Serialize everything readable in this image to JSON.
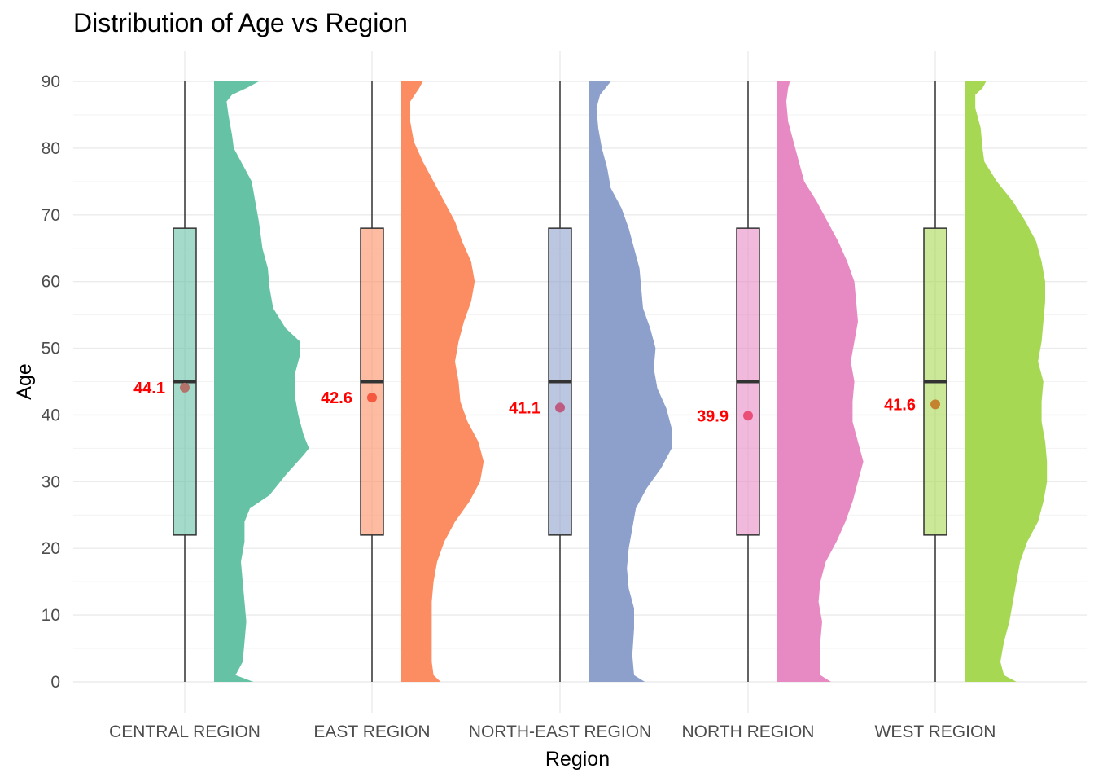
{
  "chart_data": {
    "type": "raincloud",
    "title": "Distribution of Age vs Region",
    "xlabel": "Region",
    "ylabel": "Age",
    "ylim": [
      0,
      90
    ],
    "yticks": [
      0,
      10,
      20,
      30,
      40,
      50,
      60,
      70,
      80,
      90
    ],
    "grid": true,
    "legend": "none",
    "categories": [
      "CENTRAL REGION",
      "EAST REGION",
      "NORTH-EAST REGION",
      "NORTH REGION",
      "WEST REGION"
    ],
    "colors": [
      "#66c2a5",
      "#fc8d62",
      "#8da0cb",
      "#e78ac3",
      "#a6d854"
    ],
    "series": [
      {
        "category": "CENTRAL REGION",
        "box": {
          "min": 0,
          "q1": 22,
          "median": 45,
          "q3": 68,
          "max": 90
        },
        "mean": 44.1,
        "mean_label": "44.1",
        "mean_color": "#b3726a",
        "density": [
          [
            0,
            0.22
          ],
          [
            1,
            0.12
          ],
          [
            3,
            0.16
          ],
          [
            6,
            0.17
          ],
          [
            9,
            0.18
          ],
          [
            12,
            0.17
          ],
          [
            15,
            0.16
          ],
          [
            18,
            0.15
          ],
          [
            21,
            0.17
          ],
          [
            24,
            0.17
          ],
          [
            26,
            0.2
          ],
          [
            28,
            0.31
          ],
          [
            31,
            0.4
          ],
          [
            34,
            0.5
          ],
          [
            35,
            0.53
          ],
          [
            37,
            0.5
          ],
          [
            40,
            0.47
          ],
          [
            43,
            0.45
          ],
          [
            46,
            0.45
          ],
          [
            49,
            0.48
          ],
          [
            51,
            0.48
          ],
          [
            53,
            0.4
          ],
          [
            56,
            0.33
          ],
          [
            59,
            0.31
          ],
          [
            62,
            0.3
          ],
          [
            65,
            0.27
          ],
          [
            69,
            0.25
          ],
          [
            72,
            0.23
          ],
          [
            75,
            0.21
          ],
          [
            78,
            0.15
          ],
          [
            80,
            0.11
          ],
          [
            82,
            0.1
          ],
          [
            85,
            0.08
          ],
          [
            87,
            0.07
          ],
          [
            88,
            0.1
          ],
          [
            89,
            0.18
          ],
          [
            90,
            0.25
          ]
        ]
      },
      {
        "category": "EAST REGION",
        "box": {
          "min": 0,
          "q1": 22,
          "median": 45,
          "q3": 68,
          "max": 90
        },
        "mean": 42.6,
        "mean_label": "42.6",
        "mean_color": "#f5573f",
        "density": [
          [
            0,
            0.22
          ],
          [
            1,
            0.18
          ],
          [
            3,
            0.17
          ],
          [
            6,
            0.17
          ],
          [
            9,
            0.17
          ],
          [
            12,
            0.17
          ],
          [
            15,
            0.18
          ],
          [
            18,
            0.2
          ],
          [
            21,
            0.24
          ],
          [
            24,
            0.3
          ],
          [
            27,
            0.38
          ],
          [
            30,
            0.44
          ],
          [
            33,
            0.46
          ],
          [
            36,
            0.43
          ],
          [
            39,
            0.37
          ],
          [
            42,
            0.33
          ],
          [
            45,
            0.32
          ],
          [
            48,
            0.3
          ],
          [
            51,
            0.32
          ],
          [
            54,
            0.35
          ],
          [
            57,
            0.39
          ],
          [
            60,
            0.41
          ],
          [
            63,
            0.39
          ],
          [
            66,
            0.34
          ],
          [
            69,
            0.3
          ],
          [
            72,
            0.24
          ],
          [
            75,
            0.18
          ],
          [
            78,
            0.12
          ],
          [
            81,
            0.07
          ],
          [
            84,
            0.05
          ],
          [
            87,
            0.05
          ],
          [
            89,
            0.1
          ],
          [
            90,
            0.12
          ]
        ]
      },
      {
        "category": "NORTH-EAST REGION",
        "box": {
          "min": 0,
          "q1": 22,
          "median": 45,
          "q3": 68,
          "max": 90
        },
        "mean": 41.1,
        "mean_label": "41.1",
        "mean_color": "#bf5a80",
        "density": [
          [
            0,
            0.31
          ],
          [
            1,
            0.25
          ],
          [
            4,
            0.24
          ],
          [
            8,
            0.25
          ],
          [
            11,
            0.25
          ],
          [
            14,
            0.22
          ],
          [
            17,
            0.21
          ],
          [
            20,
            0.22
          ],
          [
            23,
            0.24
          ],
          [
            26,
            0.26
          ],
          [
            29,
            0.32
          ],
          [
            32,
            0.4
          ],
          [
            35,
            0.46
          ],
          [
            38,
            0.46
          ],
          [
            41,
            0.43
          ],
          [
            44,
            0.38
          ],
          [
            47,
            0.36
          ],
          [
            50,
            0.37
          ],
          [
            53,
            0.34
          ],
          [
            56,
            0.3
          ],
          [
            59,
            0.29
          ],
          [
            62,
            0.28
          ],
          [
            65,
            0.25
          ],
          [
            68,
            0.22
          ],
          [
            71,
            0.18
          ],
          [
            74,
            0.12
          ],
          [
            77,
            0.1
          ],
          [
            80,
            0.07
          ],
          [
            83,
            0.05
          ],
          [
            86,
            0.04
          ],
          [
            88,
            0.06
          ],
          [
            90,
            0.12
          ]
        ]
      },
      {
        "category": "NORTH REGION",
        "box": {
          "min": 0,
          "q1": 22,
          "median": 45,
          "q3": 68,
          "max": 90
        },
        "mean": 39.9,
        "mean_label": "39.9",
        "mean_color": "#ea4f77",
        "density": [
          [
            0,
            0.3
          ],
          [
            1,
            0.24
          ],
          [
            3,
            0.24
          ],
          [
            6,
            0.24
          ],
          [
            9,
            0.25
          ],
          [
            12,
            0.23
          ],
          [
            15,
            0.24
          ],
          [
            18,
            0.27
          ],
          [
            21,
            0.33
          ],
          [
            24,
            0.38
          ],
          [
            27,
            0.42
          ],
          [
            30,
            0.45
          ],
          [
            33,
            0.48
          ],
          [
            36,
            0.45
          ],
          [
            39,
            0.42
          ],
          [
            42,
            0.42
          ],
          [
            45,
            0.43
          ],
          [
            48,
            0.41
          ],
          [
            51,
            0.43
          ],
          [
            54,
            0.45
          ],
          [
            57,
            0.44
          ],
          [
            60,
            0.43
          ],
          [
            63,
            0.39
          ],
          [
            66,
            0.34
          ],
          [
            69,
            0.28
          ],
          [
            72,
            0.22
          ],
          [
            75,
            0.15
          ],
          [
            78,
            0.12
          ],
          [
            81,
            0.09
          ],
          [
            84,
            0.06
          ],
          [
            87,
            0.05
          ],
          [
            89,
            0.06
          ],
          [
            90,
            0.07
          ]
        ]
      },
      {
        "category": "WEST REGION",
        "box": {
          "min": 0,
          "q1": 22,
          "median": 45,
          "q3": 68,
          "max": 90
        },
        "mean": 41.6,
        "mean_label": "41.6",
        "mean_color": "#c5832f",
        "density": [
          [
            0,
            0.29
          ],
          [
            1,
            0.22
          ],
          [
            3,
            0.2
          ],
          [
            6,
            0.22
          ],
          [
            9,
            0.25
          ],
          [
            12,
            0.27
          ],
          [
            15,
            0.29
          ],
          [
            18,
            0.31
          ],
          [
            21,
            0.35
          ],
          [
            24,
            0.41
          ],
          [
            27,
            0.44
          ],
          [
            30,
            0.46
          ],
          [
            33,
            0.46
          ],
          [
            36,
            0.45
          ],
          [
            39,
            0.43
          ],
          [
            42,
            0.43
          ],
          [
            45,
            0.44
          ],
          [
            48,
            0.41
          ],
          [
            51,
            0.43
          ],
          [
            54,
            0.44
          ],
          [
            57,
            0.45
          ],
          [
            60,
            0.45
          ],
          [
            63,
            0.43
          ],
          [
            66,
            0.4
          ],
          [
            69,
            0.34
          ],
          [
            72,
            0.27
          ],
          [
            75,
            0.18
          ],
          [
            78,
            0.11
          ],
          [
            80,
            0.1
          ],
          [
            83,
            0.09
          ],
          [
            86,
            0.06
          ],
          [
            88,
            0.06
          ],
          [
            89,
            0.1
          ],
          [
            90,
            0.12
          ]
        ]
      }
    ]
  }
}
